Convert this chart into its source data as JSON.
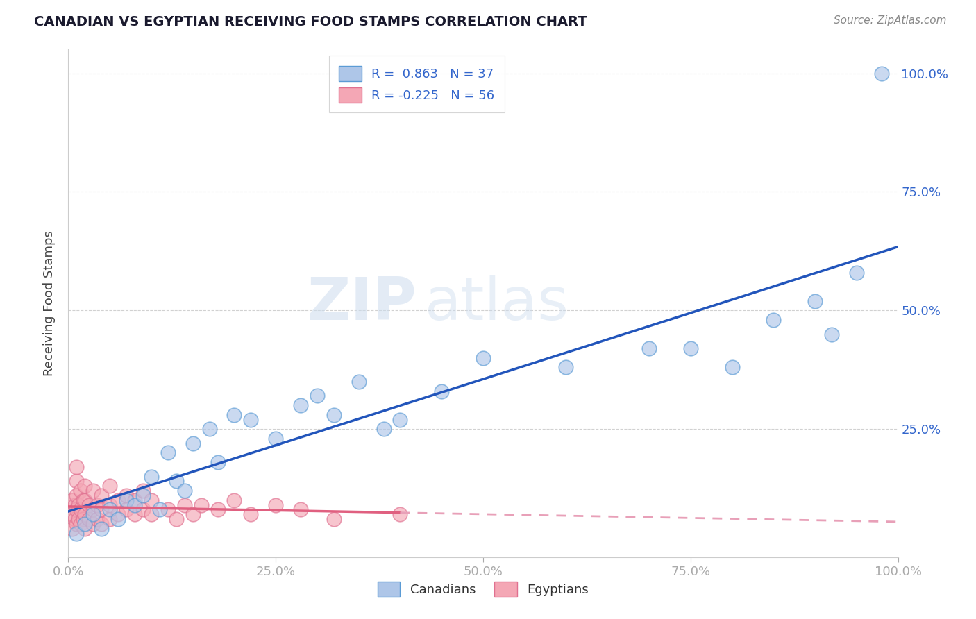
{
  "title": "CANADIAN VS EGYPTIAN RECEIVING FOOD STAMPS CORRELATION CHART",
  "source": "Source: ZipAtlas.com",
  "ylabel": "Receiving Food Stamps",
  "xlim": [
    0.0,
    1.0
  ],
  "ylim": [
    -0.02,
    1.05
  ],
  "xtick_labels": [
    "0.0%",
    "25.0%",
    "50.0%",
    "75.0%",
    "100.0%"
  ],
  "xtick_vals": [
    0.0,
    0.25,
    0.5,
    0.75,
    1.0
  ],
  "ytick_labels": [
    "25.0%",
    "50.0%",
    "75.0%",
    "100.0%"
  ],
  "ytick_vals": [
    0.25,
    0.5,
    0.75,
    1.0
  ],
  "watermark_zip": "ZIP",
  "watermark_atlas": "atlas",
  "legend_line1": "R =  0.863   N = 37",
  "legend_line2": "R = -0.225   N = 56",
  "canadian_color": "#aec6e8",
  "canadian_edge": "#5b9bd5",
  "egyptian_color": "#f4a7b5",
  "egyptian_edge": "#e07090",
  "canadian_line_color": "#2255bb",
  "egyptian_line_color": "#e06080",
  "egyptian_dash_color": "#e8a0b8",
  "background_color": "#ffffff",
  "grid_color": "#cccccc",
  "title_color": "#1a1a2e",
  "axis_label_color": "#3366cc",
  "canadians_x": [
    0.01,
    0.02,
    0.03,
    0.04,
    0.05,
    0.06,
    0.07,
    0.08,
    0.09,
    0.1,
    0.11,
    0.12,
    0.13,
    0.14,
    0.15,
    0.17,
    0.18,
    0.2,
    0.22,
    0.25,
    0.28,
    0.3,
    0.32,
    0.35,
    0.38,
    0.4,
    0.45,
    0.5,
    0.6,
    0.7,
    0.75,
    0.8,
    0.85,
    0.9,
    0.92,
    0.95,
    0.98
  ],
  "canadians_y": [
    0.03,
    0.05,
    0.07,
    0.04,
    0.08,
    0.06,
    0.1,
    0.09,
    0.11,
    0.15,
    0.08,
    0.2,
    0.14,
    0.12,
    0.22,
    0.25,
    0.18,
    0.28,
    0.27,
    0.23,
    0.3,
    0.32,
    0.28,
    0.35,
    0.25,
    0.27,
    0.33,
    0.4,
    0.38,
    0.42,
    0.42,
    0.38,
    0.48,
    0.52,
    0.45,
    0.58,
    1.0
  ],
  "egyptians_x": [
    0.005,
    0.005,
    0.005,
    0.008,
    0.008,
    0.01,
    0.01,
    0.01,
    0.01,
    0.01,
    0.012,
    0.012,
    0.015,
    0.015,
    0.015,
    0.018,
    0.018,
    0.02,
    0.02,
    0.02,
    0.02,
    0.025,
    0.025,
    0.03,
    0.03,
    0.03,
    0.035,
    0.035,
    0.04,
    0.04,
    0.04,
    0.05,
    0.05,
    0.05,
    0.06,
    0.06,
    0.07,
    0.07,
    0.08,
    0.08,
    0.09,
    0.09,
    0.1,
    0.1,
    0.12,
    0.13,
    0.14,
    0.15,
    0.16,
    0.18,
    0.2,
    0.22,
    0.25,
    0.28,
    0.32,
    0.4
  ],
  "egyptians_y": [
    0.04,
    0.07,
    0.1,
    0.06,
    0.09,
    0.05,
    0.08,
    0.11,
    0.14,
    0.17,
    0.06,
    0.09,
    0.05,
    0.08,
    0.12,
    0.06,
    0.1,
    0.04,
    0.07,
    0.1,
    0.13,
    0.06,
    0.09,
    0.05,
    0.08,
    0.12,
    0.06,
    0.09,
    0.05,
    0.08,
    0.11,
    0.06,
    0.09,
    0.13,
    0.07,
    0.1,
    0.08,
    0.11,
    0.07,
    0.1,
    0.08,
    0.12,
    0.07,
    0.1,
    0.08,
    0.06,
    0.09,
    0.07,
    0.09,
    0.08,
    0.1,
    0.07,
    0.09,
    0.08,
    0.06,
    0.07
  ]
}
